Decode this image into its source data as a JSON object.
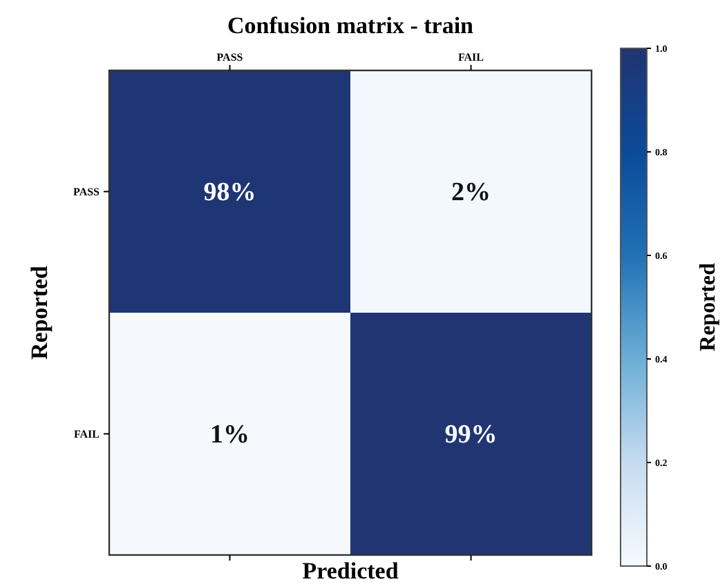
{
  "chart_data": {
    "type": "heatmap",
    "title": "Confusion matrix - train",
    "xlabel": "Predicted",
    "ylabel": "Reported",
    "clabel": "Reported",
    "categories": [
      "PASS",
      "FAIL"
    ],
    "y_categories": [
      "PASS",
      "FAIL"
    ],
    "cells": [
      [
        0.98,
        0.02
      ],
      [
        0.01,
        0.99
      ]
    ],
    "cell_labels": [
      [
        "98%",
        "2%"
      ],
      [
        "1%",
        "99%"
      ]
    ],
    "clim": [
      0,
      1
    ],
    "cticks": [
      {
        "value": 0,
        "label": "0.0"
      },
      {
        "value": 0.2,
        "label": "0.2"
      },
      {
        "value": 0.4,
        "label": "0.4"
      },
      {
        "value": 0.6,
        "label": "0.6"
      },
      {
        "value": 0.8,
        "label": "0.8"
      },
      {
        "value": 1,
        "label": "1.0"
      }
    ]
  }
}
